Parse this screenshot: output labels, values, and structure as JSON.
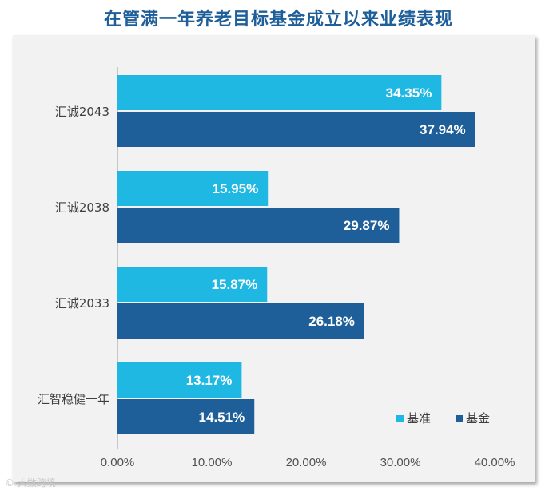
{
  "chart_data": {
    "type": "bar",
    "orientation": "horizontal",
    "title": "在管满一年养老目标基金成立以来业绩表现",
    "categories": [
      "汇诚2043",
      "汇诚2038",
      "汇诚2033",
      "汇智稳健一年"
    ],
    "series": [
      {
        "name": "基准",
        "color": "#1fb8e3",
        "values": [
          34.35,
          15.95,
          15.87,
          13.17
        ]
      },
      {
        "name": "基金",
        "color": "#1f5f99",
        "values": [
          37.94,
          29.87,
          26.18,
          14.51
        ]
      }
    ],
    "data_labels": [
      [
        "34.35%",
        "15.95%",
        "15.87%",
        "13.17%"
      ],
      [
        "37.94%",
        "29.87%",
        "26.18%",
        "14.51%"
      ]
    ],
    "x_ticks": [
      "0.00%",
      "10.00%",
      "20.00%",
      "30.00%",
      "40.00%"
    ],
    "xlim": [
      0,
      40
    ],
    "grid": false,
    "legend_position": "bottom-right"
  },
  "watermark": "© 大数跨境"
}
